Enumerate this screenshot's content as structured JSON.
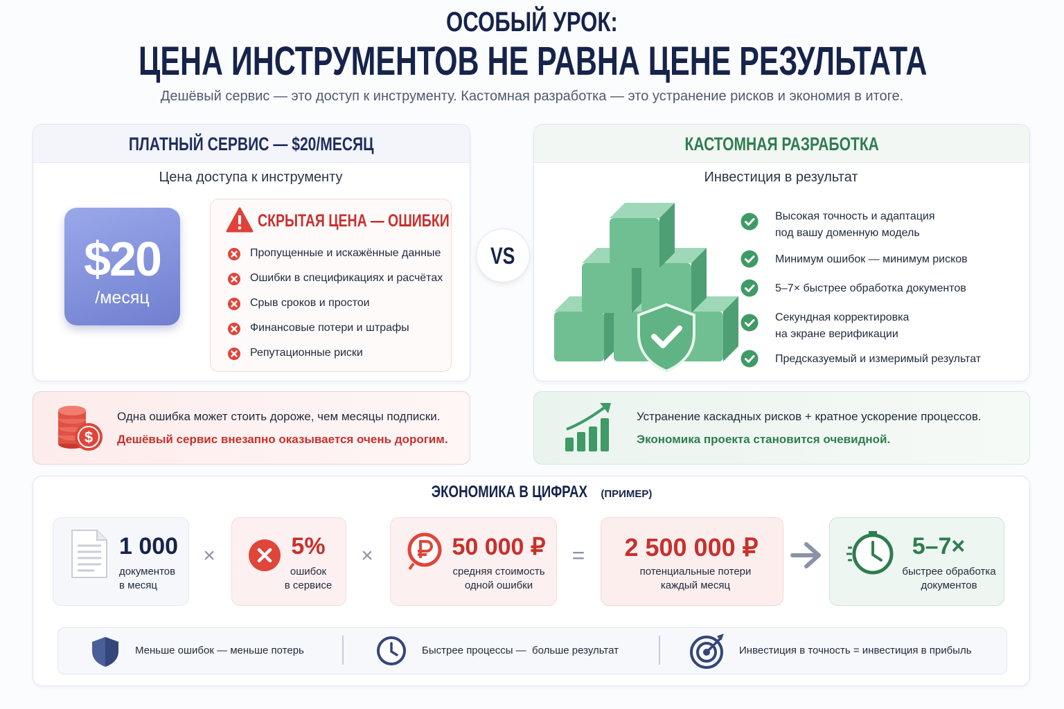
{
  "header": {
    "kicker": "ОСОБЫЙ УРОК:",
    "title": "ЦЕНА ИНСТРУМЕНТОВ НЕ РАВНА ЦЕНЕ РЕЗУЛЬТАТА",
    "subtitle": "Дешёвый сервис — это доступ к инструменту. Кастомная разработка — это устранение рисков и экономия в итоге."
  },
  "left_panel": {
    "title": "ПЛАТНЫЙ СЕРВИС — $20/МЕСЯЦ",
    "subtitle": "Цена доступа к инструменту",
    "price": {
      "amount": "$20",
      "period": "/месяц"
    },
    "hidden_cost": {
      "title": "СКРЫТАЯ ЦЕНА — ОШИБКИ",
      "items": [
        "Пропущенные и искажённые данные",
        "Ошибки в спецификациях и расчётах",
        "Срыв сроков и простои",
        "Финансовые потери и штрафы",
        "Репутационные риски"
      ]
    }
  },
  "vs": "VS",
  "right_panel": {
    "title": "КАСТОМНАЯ РАЗРАБОТКА",
    "subtitle": "Инвестиция в результат",
    "benefits": [
      "Высокая точность и адаптация\nпод вашу доменную модель",
      "Минимум ошибок — минимум рисков",
      "5–7× быстрее обработка документов",
      "Секундная корректировка\nна экране верификации",
      "Предсказуемый и измеримый результат"
    ]
  },
  "left_callout": {
    "text": "Одна ошибка может стоить дороже, чем месяцы подписки.",
    "highlight": "Дешёвый сервис внезапно оказывается очень дорогим."
  },
  "right_callout": {
    "text": "Устранение каскадных рисков + кратное ускорение процессов.",
    "highlight": "Экономика проекта становится очевидной."
  },
  "economics": {
    "title": "ЭКОНОМИКА В ЦИФРАХ",
    "note": "(ПРИМЕР)",
    "cards": [
      {
        "value": "1 000",
        "label": "документов\nв месяц"
      },
      {
        "value": "5%",
        "label": "ошибок\nв сервисе"
      },
      {
        "value": "50 000 ₽",
        "label": "средняя стоимость\nодной ошибки"
      },
      {
        "value": "2 500 000 ₽",
        "label": "потенциальные потери\nкаждый месяц"
      },
      {
        "value": "5–7×",
        "label": "быстрее обработка\nдокументов"
      }
    ],
    "operators": [
      "×",
      "×",
      "="
    ]
  },
  "footer": {
    "items": [
      "Меньше ошибок — меньше потерь",
      "Быстрее процессы —  больше результат",
      "Инвестиция в точность = инвестиция в прибыль"
    ]
  }
}
